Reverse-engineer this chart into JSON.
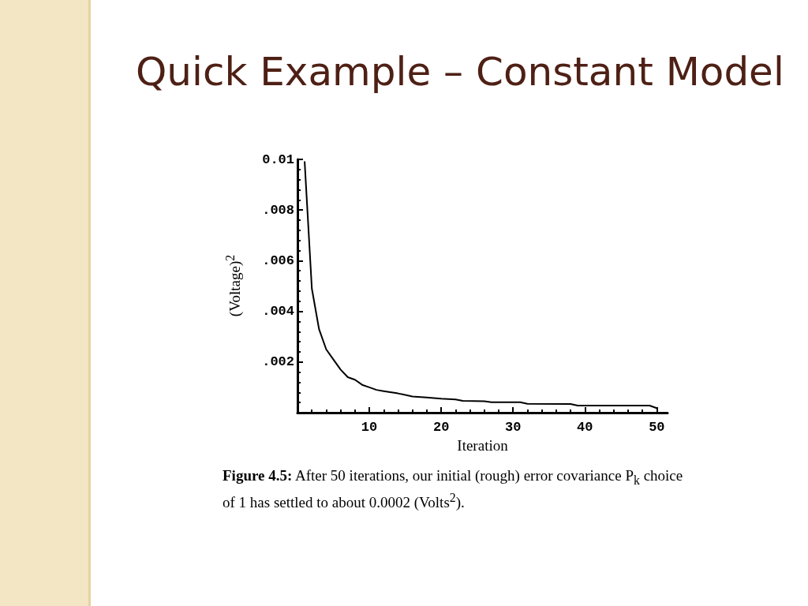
{
  "chart_data": {
    "type": "line",
    "title": "Quick Example – Constant Model",
    "xlabel": "Iteration",
    "ylabel": "(Voltage)$^{2}$",
    "annotations": [
      "Figure 4.5:",
      "After 50 iterations, our initial (rough) error covariance P$_{k}$ choice of 1 has settled to about 0.0002 (Volts$^{2}$)."
    ],
    "x": [
      1,
      2,
      3,
      4,
      5,
      6,
      7,
      8,
      9,
      10,
      11,
      12,
      14,
      16,
      18,
      20,
      22,
      23,
      26,
      27,
      31,
      32,
      38,
      39,
      49,
      50
    ],
    "series": [
      {
        "color": "#000000",
        "values": [
          0.0099,
          0.0049,
          0.0033,
          0.0025,
          0.0021,
          0.0017,
          0.0014,
          0.0013,
          0.0011,
          0.001,
          0.0009,
          0.00085,
          0.00076,
          0.00064,
          0.0006,
          0.00055,
          0.00052,
          0.00047,
          0.00045,
          0.00041,
          0.00041,
          0.00035,
          0.00034,
          0.00028,
          0.00028,
          0.00018
        ]
      }
    ],
    "xlim": [
      0,
      51.5
    ],
    "xticks": [
      10,
      20,
      30,
      40,
      50
    ],
    "ylim": [
      0,
      0.01
    ],
    "yticks": [
      {
        "value": 0.002,
        "label": ".002"
      },
      {
        "value": 0.004,
        "label": ".004"
      },
      {
        "value": 0.006,
        "label": ".006"
      },
      {
        "value": 0.008,
        "label": ".008"
      },
      {
        "value": 0.01,
        "label": "0.01"
      }
    ],
    "marker": "none",
    "line_style": "solid"
  }
}
